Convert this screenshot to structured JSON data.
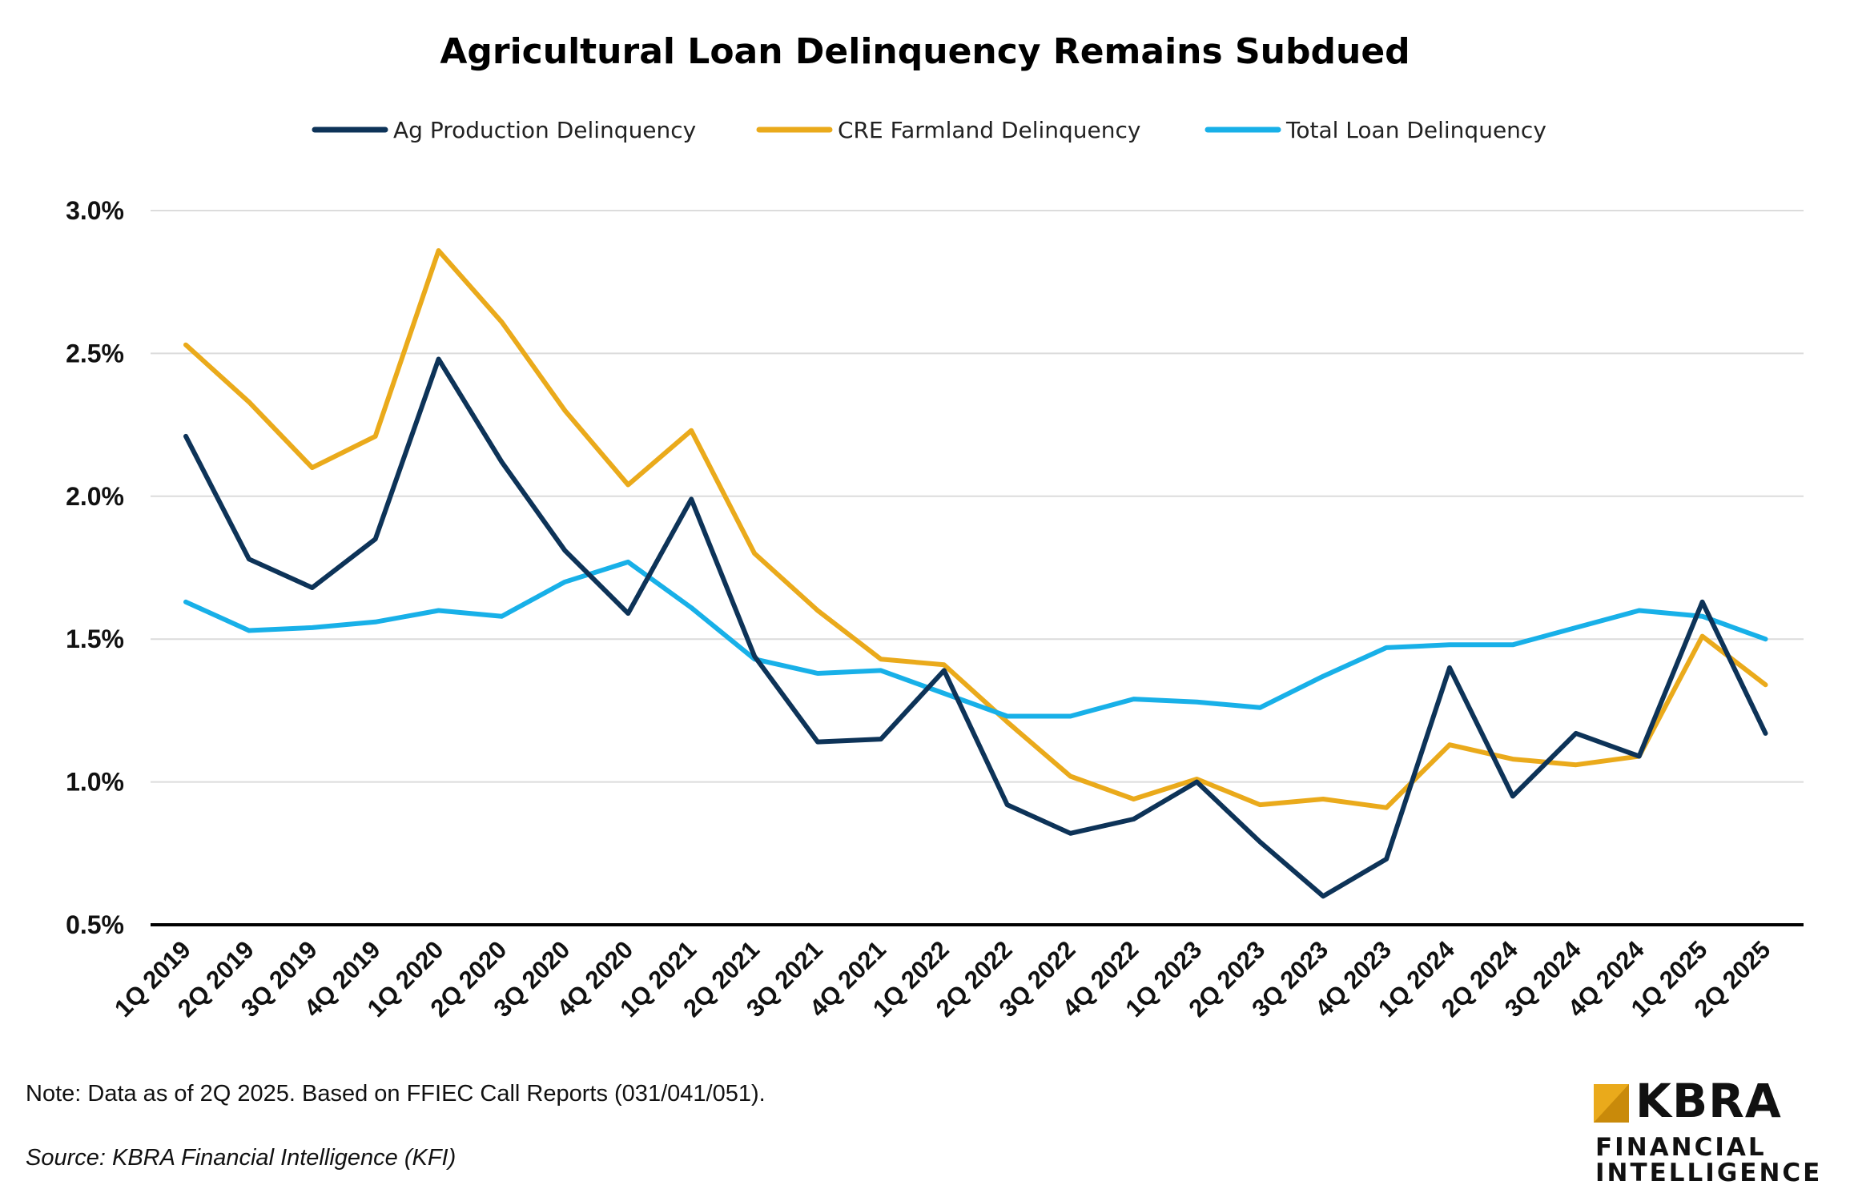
{
  "chart_data": {
    "type": "line",
    "title": "Agricultural Loan Delinquency Remains Subdued",
    "xlabel": "",
    "ylabel": "",
    "ylim": [
      0.5,
      3.0
    ],
    "yticks": [
      "0.5%",
      "1.0%",
      "1.5%",
      "2.0%",
      "2.5%",
      "3.0%"
    ],
    "ytick_values": [
      0.5,
      1.0,
      1.5,
      2.0,
      2.5,
      3.0
    ],
    "grid": true,
    "legend_position": "top-center",
    "categories": [
      "1Q 2019",
      "2Q 2019",
      "3Q 2019",
      "4Q 2019",
      "1Q 2020",
      "2Q 2020",
      "3Q 2020",
      "4Q 2020",
      "1Q 2021",
      "2Q 2021",
      "3Q 2021",
      "4Q 2021",
      "1Q 2022",
      "2Q 2022",
      "3Q 2022",
      "4Q 2022",
      "1Q 2023",
      "2Q 2023",
      "3Q 2023",
      "4Q 2023",
      "1Q 2024",
      "2Q 2024",
      "3Q 2024",
      "4Q 2024",
      "1Q 2025",
      "2Q 2025"
    ],
    "series": [
      {
        "name": "Ag Production Delinquency",
        "color": "#0d3358",
        "values": [
          2.21,
          1.78,
          1.68,
          1.85,
          2.48,
          2.12,
          1.81,
          1.59,
          1.99,
          1.44,
          1.14,
          1.15,
          1.39,
          0.92,
          0.82,
          0.87,
          1.0,
          0.79,
          0.6,
          0.73,
          1.4,
          0.95,
          1.17,
          1.09,
          1.63,
          1.17
        ]
      },
      {
        "name": "CRE Farmland Delinquency",
        "color": "#eaaa1b",
        "values": [
          2.53,
          2.33,
          2.1,
          2.21,
          2.86,
          2.61,
          2.3,
          2.04,
          2.23,
          1.8,
          1.6,
          1.43,
          1.41,
          1.21,
          1.02,
          0.94,
          1.01,
          0.92,
          0.94,
          0.91,
          1.13,
          1.08,
          1.06,
          1.09,
          1.51,
          1.34
        ]
      },
      {
        "name": "Total Loan Delinquency",
        "color": "#18b0e8",
        "values": [
          1.63,
          1.53,
          1.54,
          1.56,
          1.6,
          1.58,
          1.7,
          1.77,
          1.61,
          1.43,
          1.38,
          1.39,
          1.31,
          1.23,
          1.23,
          1.29,
          1.28,
          1.26,
          1.37,
          1.47,
          1.48,
          1.48,
          1.54,
          1.6,
          1.58,
          1.5
        ]
      }
    ]
  },
  "footer": {
    "note": "Note: Data as of 2Q 2025. Based on FFIEC Call Reports (031/041/051).",
    "source": "Source: KBRA Financial Intelligence (KFI)"
  },
  "logo": {
    "brand": "KBRA",
    "line1": "FINANCIAL",
    "line2": "INTELLIGENCE",
    "mark_color": "#eaaa1b"
  }
}
